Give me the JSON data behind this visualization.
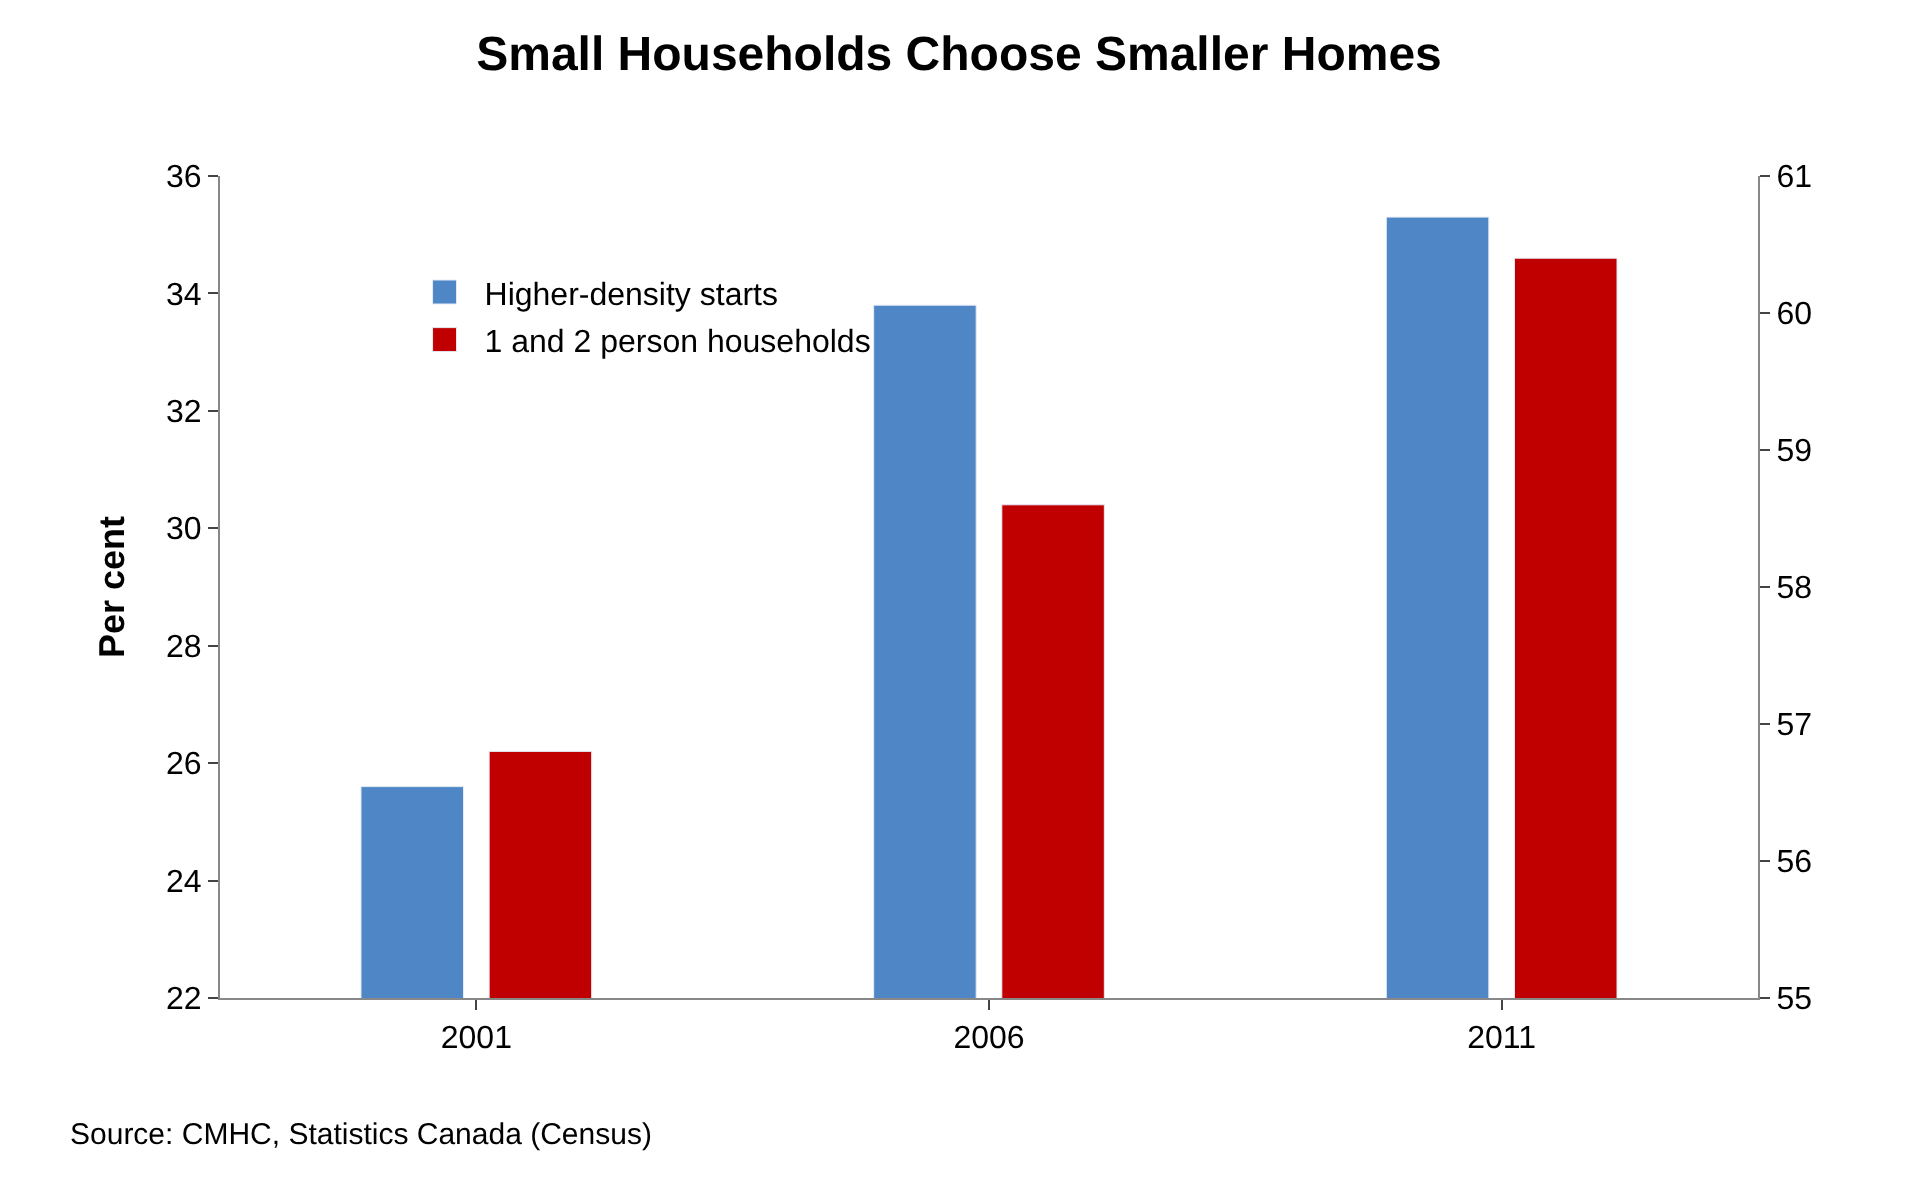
{
  "chart_data": {
    "type": "bar",
    "title": "Small Households Choose Smaller Homes",
    "ylabel": "Per cent",
    "categories": [
      "2001",
      "2006",
      "2011"
    ],
    "series": [
      {
        "name": "Higher-density starts",
        "color": "#4f86c6",
        "values": [
          25.6,
          33.8,
          35.3
        ]
      },
      {
        "name": "1 and 2 person households",
        "color": "#c00000",
        "values": [
          56.8,
          58.6,
          60.4
        ],
        "axis": "y2"
      }
    ],
    "ylim": [
      22,
      36
    ],
    "yticks": [
      22,
      24,
      26,
      28,
      30,
      32,
      34,
      36
    ],
    "y2lim": [
      55,
      61
    ],
    "y2ticks": [
      55,
      56,
      57,
      58,
      59,
      60,
      61
    ],
    "legend": "top left",
    "annotations": [
      "Source: CMHC, Statistics Canada (Census)"
    ]
  }
}
